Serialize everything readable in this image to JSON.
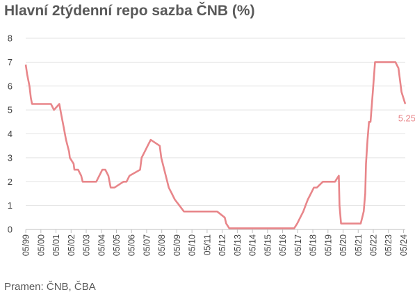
{
  "chart_data": {
    "type": "line",
    "title": "Hlavní 2týdenní repo sazba ČNB (%)",
    "source": "Pramen: ČNB, ČBA",
    "ylim": [
      0,
      8
    ],
    "yticks": [
      "0",
      "1",
      "2",
      "3",
      "4",
      "5",
      "6",
      "7",
      "8"
    ],
    "xlim": [
      1999.33,
      2024.45
    ],
    "xticks": [
      "05/99",
      "05/00",
      "05/01",
      "05/02",
      "05/03",
      "05/04",
      "05/05",
      "05/06",
      "05/07",
      "05/08",
      "05/09",
      "05/10",
      "05/11",
      "05/12",
      "05/13",
      "05/14",
      "05/15",
      "05/16",
      "05/17",
      "05/18",
      "05/19",
      "05/20",
      "05/21",
      "05/22",
      "05/23",
      "05/24"
    ],
    "grid": true,
    "line_color": "#E8868A",
    "end_label": "5.25",
    "series": [
      {
        "x": [
          1999.33,
          1999.42,
          1999.5,
          1999.58,
          1999.67,
          1999.75,
          1999.83,
          2000.0,
          2000.5,
          2001.0,
          2001.2,
          2001.55,
          2001.7,
          2001.85,
          2002.0,
          2002.2,
          2002.25,
          2002.5,
          2002.55,
          2002.8,
          2003.0,
          2003.1,
          2003.6,
          2003.7,
          2004.0,
          2004.4,
          2004.6,
          2004.8,
          2004.95,
          2005.2,
          2005.8,
          2006.0,
          2006.2,
          2006.9,
          2007.0,
          2007.2,
          2007.4,
          2007.6,
          2008.2,
          2008.3,
          2008.6,
          2008.8,
          2009.0,
          2009.2,
          2009.5,
          2009.8,
          2010.2,
          2010.5,
          2011.0,
          2012.0,
          2012.5,
          2012.6,
          2012.8,
          2012.9,
          2016.5,
          2017.1,
          2017.3,
          2017.5,
          2017.7,
          2017.85,
          2018.0,
          2018.2,
          2018.4,
          2018.6,
          2019.0,
          2019.5,
          2019.8,
          2020.05,
          2020.1,
          2020.2,
          2020.3,
          2020.4,
          2021.0,
          2021.5,
          2021.6,
          2021.7,
          2021.8,
          2021.85,
          2021.95,
          2022.05,
          2022.15,
          2022.3,
          2022.45,
          2022.6,
          2023.4,
          2023.6,
          2023.8,
          2024.0,
          2024.2,
          2024.45
        ],
        "y": [
          6.9,
          6.5,
          6.25,
          6.0,
          5.5,
          5.25,
          5.25,
          5.25,
          5.25,
          5.25,
          5.0,
          5.25,
          4.75,
          4.25,
          3.75,
          3.25,
          3.0,
          2.75,
          2.5,
          2.5,
          2.25,
          2.0,
          2.0,
          2.0,
          2.0,
          2.5,
          2.5,
          2.25,
          1.75,
          1.75,
          2.0,
          2.0,
          2.25,
          2.5,
          3.0,
          3.25,
          3.5,
          3.75,
          3.5,
          3.0,
          2.25,
          1.75,
          1.5,
          1.25,
          1.0,
          0.75,
          0.75,
          0.75,
          0.75,
          0.75,
          0.5,
          0.25,
          0.05,
          0.05,
          0.05,
          0.05,
          0.25,
          0.5,
          0.75,
          1.0,
          1.25,
          1.5,
          1.75,
          1.75,
          2.0,
          2.0,
          2.0,
          2.25,
          1.0,
          0.25,
          0.25,
          0.25,
          0.25,
          0.25,
          0.5,
          0.75,
          1.5,
          2.75,
          3.75,
          4.5,
          4.5,
          5.75,
          7.0,
          7.0,
          7.0,
          7.0,
          7.0,
          6.75,
          5.75,
          5.25
        ]
      }
    ]
  }
}
